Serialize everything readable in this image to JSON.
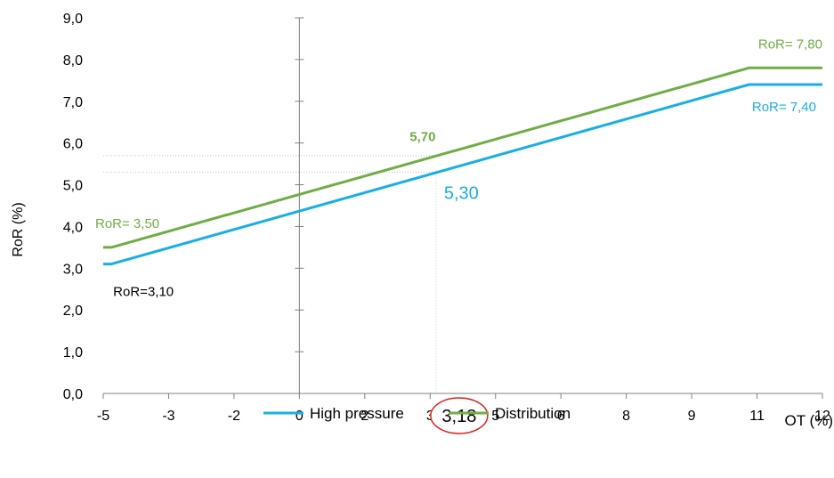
{
  "chart_data": {
    "type": "line",
    "xlabel": "OT (%)",
    "ylabel": "RoR (%)",
    "ylim": [
      0,
      9
    ],
    "y_ticks": [
      "0,0",
      "1,0",
      "2,0",
      "3,0",
      "4,0",
      "5,0",
      "6,0",
      "7,0",
      "8,0",
      "9,0"
    ],
    "x_ticks": [
      "-5",
      "-3",
      "-2",
      "0",
      "2",
      "3",
      "5",
      "6",
      "8",
      "9",
      "11",
      "12"
    ],
    "x_tick_values": [
      -5,
      -3,
      -2,
      0,
      2,
      3,
      5,
      6,
      8,
      9,
      11,
      12
    ],
    "grid": false,
    "legend_position": "bottom",
    "series": [
      {
        "name": "High pressure",
        "color": "#1aaee6",
        "x": [
          -5,
          -4.75,
          10.75,
          12
        ],
        "y": [
          3.1,
          3.1,
          7.4,
          7.4
        ]
      },
      {
        "name": "Distribution",
        "color": "#70ad47",
        "x": [
          -5,
          -4.75,
          10.75,
          12
        ],
        "y": [
          3.5,
          3.5,
          7.8,
          7.8
        ]
      }
    ],
    "reference_lines": {
      "x": 3.18,
      "y_high_pressure": 5.3,
      "y_distribution": 5.7
    },
    "annotations": [
      {
        "text": "RoR= 3,50",
        "color": "#70ad47",
        "x": -5,
        "y": 3.5
      },
      {
        "text": "RoR=3,10",
        "color": "#000000",
        "x": -4.75,
        "y": 3.1
      },
      {
        "text": "5,70",
        "color": "#70ad47",
        "x": 3.18,
        "y": 5.7,
        "bold": true
      },
      {
        "text": "5,30",
        "color": "#1aaee6",
        "x": 3.18,
        "y": 5.3
      },
      {
        "text": "RoR= 7,80",
        "color": "#70ad47",
        "x": 12,
        "y": 7.8
      },
      {
        "text": "RoR= 7,40",
        "color": "#1aaee6",
        "x": 12,
        "y": 7.4
      }
    ],
    "highlight": {
      "text": "3,18",
      "x": 3.18,
      "circle_color": "#e02020"
    }
  }
}
